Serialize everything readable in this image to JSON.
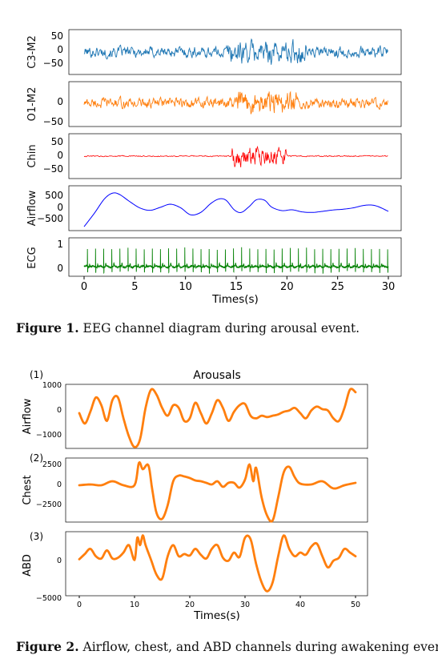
{
  "figure1": {
    "caption_label": "Figure 1.",
    "caption_text": " EEG channel diagram during arousal event.",
    "xlabel": "Times(s)",
    "x_ticks": [
      "0",
      "5",
      "10",
      "15",
      "20",
      "25",
      "30"
    ],
    "colors": {
      "c3m2": "#1f77b4",
      "o1m2": "#ff7f0e",
      "chin": "#ff0000",
      "airflow": "#0000ff",
      "ecg": "#008000"
    }
  },
  "figure2": {
    "caption_label": "Figure 2.",
    "caption_text": " Airflow, chest, and ABD channels during awakening events.",
    "title": "Arousals",
    "xlabel": "Times(s)",
    "x_ticks": [
      "0",
      "10",
      "20",
      "30",
      "40",
      "50"
    ],
    "color": "#ff7f0e"
  },
  "chart_data": [
    {
      "type": "line",
      "figure": "Figure 1",
      "xlabel": "Times(s)",
      "xlim": [
        0,
        30
      ],
      "panels": [
        {
          "ylabel": "C3-M2",
          "y_ticks": [
            "50",
            "0",
            "−50"
          ],
          "ylim": [
            -70,
            70
          ],
          "color": "#1f77b4",
          "series": {
            "kind": "noise",
            "base_amplitude": 18,
            "event_window": [
              14,
              22
            ],
            "event_amplitude": 38
          }
        },
        {
          "ylabel": "O1-M2",
          "y_ticks": [
            "0",
            "−50"
          ],
          "ylim": [
            -60,
            55
          ],
          "color": "#ff7f0e",
          "series": {
            "kind": "noise",
            "base_amplitude": 14,
            "event_window": [
              15,
              21
            ],
            "event_amplitude": 32
          }
        },
        {
          "ylabel": "Chin",
          "y_ticks": [
            "50",
            "0",
            "−50"
          ],
          "ylim": [
            -70,
            70
          ],
          "color": "#ff0000",
          "series": {
            "kind": "noise",
            "base_amplitude": 2,
            "event_window": [
              14.5,
              20
            ],
            "event_amplitude": 32
          }
        },
        {
          "ylabel": "Airflow",
          "y_ticks": [
            "500",
            "0",
            "−500"
          ],
          "ylim": [
            -850,
            850
          ],
          "color": "#0000ff",
          "series": {
            "kind": "points",
            "x": [
              0,
              1,
              2,
              2.8,
              3.5,
              4.5,
              5.5,
              6.5,
              7.5,
              8.5,
              9.5,
              10.5,
              11.5,
              12.5,
              13.3,
              14,
              14.8,
              15.5,
              16.3,
              17,
              17.8,
              18.5,
              19.5,
              20.5,
              21.5,
              22.5,
              23.5,
              24.5,
              25.5,
              26.5,
              27.5,
              28.3,
              29,
              30
            ],
            "y": [
              -700,
              -200,
              350,
              570,
              520,
              250,
              10,
              -80,
              30,
              150,
              20,
              -250,
              -160,
              180,
              350,
              300,
              -60,
              -160,
              70,
              320,
              300,
              40,
              -90,
              -60,
              -140,
              -160,
              -120,
              -70,
              -40,
              10,
              100,
              120,
              60,
              -120
            ]
          }
        },
        {
          "ylabel": "ECG",
          "y_ticks": [
            "1",
            "0"
          ],
          "ylim": [
            -0.4,
            1.2
          ],
          "color": "#008000",
          "series": {
            "kind": "ecg",
            "beats_per_second": 1.25,
            "peak": 0.9
          }
        }
      ]
    },
    {
      "type": "line",
      "figure": "Figure 2",
      "title": "Arousals",
      "xlabel": "Times(s)",
      "xlim": [
        0,
        50
      ],
      "panels": [
        {
          "label": "(1)",
          "ylabel": "Airflow",
          "y_ticks": [
            "1000",
            "0",
            "−1000"
          ],
          "ylim": [
            -1350,
            1100
          ],
          "x": [
            0,
            1,
            2,
            3,
            4,
            5,
            6,
            7,
            8,
            9,
            10,
            11,
            12,
            13,
            14,
            15,
            16,
            17,
            18,
            19,
            20,
            21,
            22,
            23,
            24,
            25,
            26,
            27,
            28,
            29,
            30,
            31,
            32,
            33,
            34,
            35,
            36,
            37,
            38,
            39,
            40,
            41,
            42,
            43,
            44,
            45,
            46,
            47,
            48,
            49,
            50
          ],
          "y": [
            0,
            -400,
            50,
            600,
            300,
            -300,
            500,
            600,
            -200,
            -900,
            -1300,
            -1000,
            200,
            900,
            700,
            200,
            -100,
            300,
            200,
            -300,
            -200,
            400,
            0,
            -400,
            0,
            500,
            200,
            -300,
            50,
            300,
            350,
            -100,
            -200,
            -100,
            -150,
            -100,
            -50,
            50,
            100,
            200,
            0,
            -200,
            100,
            250,
            150,
            100,
            -200,
            -300,
            200,
            900,
            800
          ]
        },
        {
          "label": "(2)",
          "ylabel": "Chest",
          "y_ticks": [
            "2500",
            "0",
            "−2500"
          ],
          "ylim": [
            -4600,
            3400
          ],
          "x": [
            0,
            2,
            4,
            6,
            8,
            10,
            10.8,
            11.5,
            12.5,
            13.2,
            14,
            15,
            16,
            17,
            18,
            19,
            20,
            21,
            22,
            23,
            24,
            25,
            26,
            27,
            28,
            29,
            30,
            30.8,
            31.5,
            32,
            33,
            34,
            35,
            36,
            37,
            38,
            39,
            40,
            42,
            44,
            46,
            48,
            50
          ],
          "y": [
            0,
            100,
            0,
            500,
            0,
            0,
            2800,
            2000,
            2500,
            -500,
            -3500,
            -4200,
            -2500,
            500,
            1200,
            1100,
            900,
            600,
            500,
            300,
            100,
            500,
            -200,
            300,
            300,
            -300,
            700,
            2600,
            500,
            2200,
            -1500,
            -3800,
            -4400,
            -1500,
            1600,
            2300,
            1000,
            200,
            100,
            500,
            -400,
            0,
            300
          ]
        },
        {
          "label": "(3)",
          "ylabel": "ABD",
          "y_ticks": [
            "0",
            "−5000"
          ],
          "ylim": [
            -5300,
            3300
          ],
          "x": [
            0,
            1,
            2,
            3,
            4,
            5,
            6,
            7,
            8,
            9,
            10,
            10.5,
            11,
            11.5,
            12,
            13,
            14,
            15,
            16,
            17,
            18,
            19,
            20,
            21,
            22,
            23,
            24,
            25,
            26,
            27,
            28,
            29,
            30,
            31,
            32,
            33,
            34,
            35,
            36,
            37,
            38,
            39,
            40,
            41,
            42,
            43,
            44,
            45,
            46,
            47,
            48,
            49,
            50
          ],
          "y": [
            -400,
            300,
            1000,
            0,
            -300,
            800,
            -300,
            -200,
            500,
            1500,
            -500,
            2500,
            1500,
            2800,
            1500,
            -500,
            -2500,
            -3000,
            0,
            1500,
            0,
            300,
            100,
            1000,
            200,
            -300,
            1000,
            1500,
            -200,
            -600,
            500,
            -100,
            2500,
            2300,
            -1000,
            -3500,
            -4700,
            -3500,
            0,
            2800,
            1000,
            0,
            500,
            200,
            1300,
            1700,
            0,
            -1500,
            -600,
            -200,
            1000,
            500,
            0
          ]
        }
      ]
    }
  ]
}
